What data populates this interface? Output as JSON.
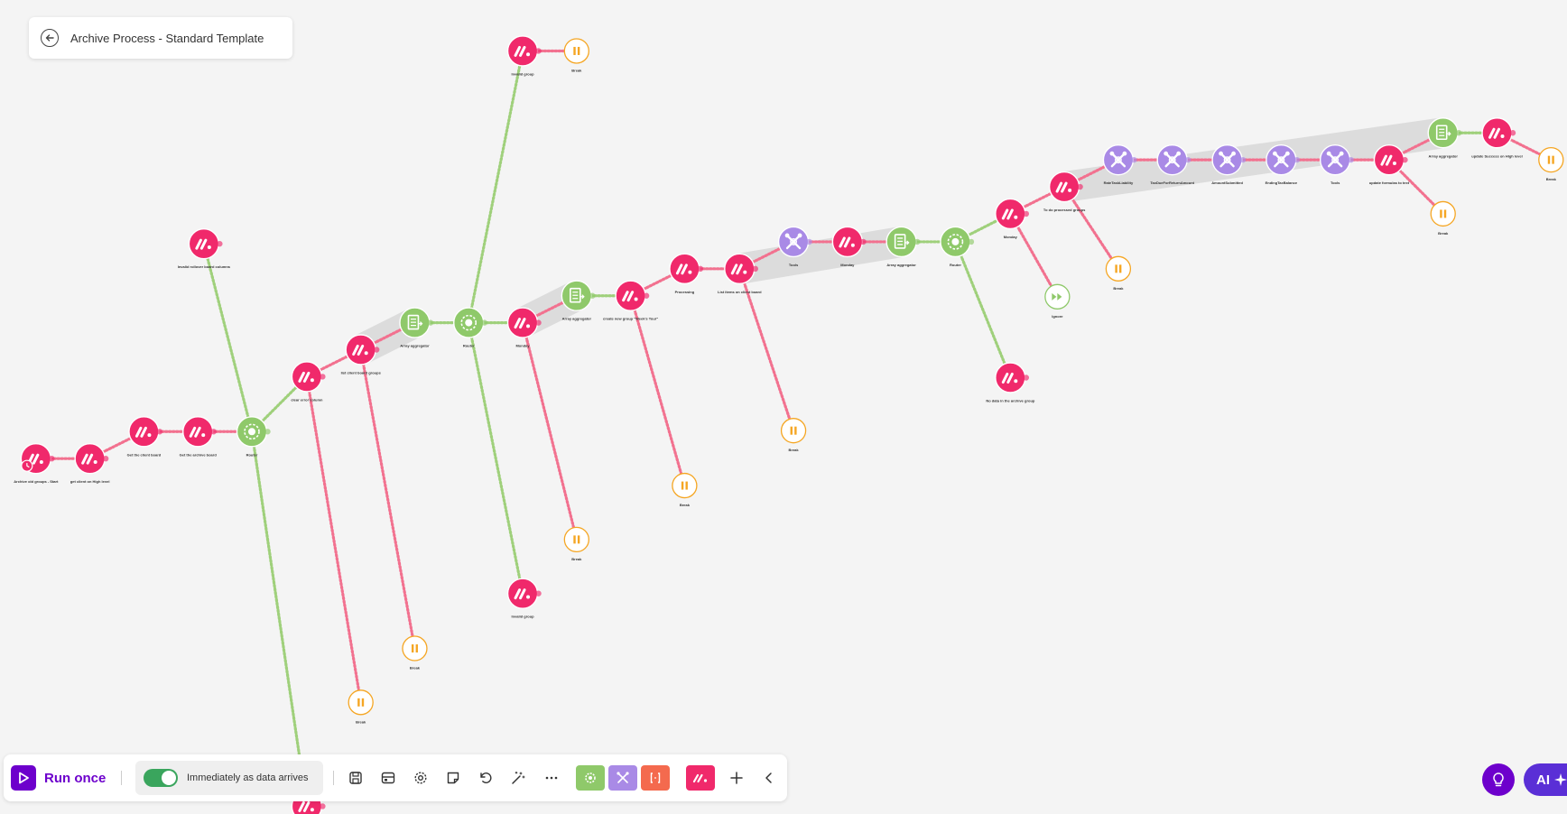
{
  "scenario": {
    "title": "Archive Process - Standard Template"
  },
  "toolbar": {
    "run_once_label": "Run once",
    "schedule_label": "Immediately as data arrives",
    "schedule_enabled": true
  },
  "bottom_right": {
    "ai_label": "AI"
  },
  "colors": {
    "app": "#f0296b",
    "router": "#8fc96a",
    "aggregator": "#8fc96a",
    "tools": "#a98ae6",
    "break": "#f5a623",
    "ignore": "#8fc96a",
    "brand": "#6d00cc"
  },
  "flow": {
    "nodes": [
      {
        "id": "n1",
        "kind": "app",
        "label": "Archive old groups - Start",
        "trigger": true
      },
      {
        "id": "n2",
        "kind": "app",
        "label": "get client on High level"
      },
      {
        "id": "n3",
        "kind": "app",
        "label": "Get the client board"
      },
      {
        "id": "n4",
        "kind": "app",
        "label": "Get the archive board"
      },
      {
        "id": "n5",
        "kind": "router",
        "label": "Router"
      },
      {
        "id": "n6",
        "kind": "app",
        "label": "Invalid rollover board columns"
      },
      {
        "id": "n7",
        "kind": "app",
        "label": "clear error column"
      },
      {
        "id": "n8",
        "kind": "app",
        "label": "list client board groups"
      },
      {
        "id": "n9",
        "kind": "aggregator",
        "label": "Array aggregator"
      },
      {
        "id": "n10",
        "kind": "router",
        "label": "Router"
      },
      {
        "id": "n11",
        "kind": "app",
        "label": "Invalid group"
      },
      {
        "id": "n12",
        "kind": "break",
        "label": "Break"
      },
      {
        "id": "n13",
        "kind": "app",
        "label": "Monday"
      },
      {
        "id": "n14",
        "kind": "aggregator",
        "label": "Array aggregator"
      },
      {
        "id": "n15",
        "kind": "app",
        "label": "create new group \"Week's Tour\""
      },
      {
        "id": "n16",
        "kind": "app",
        "label": "Processing"
      },
      {
        "id": "n17",
        "kind": "app",
        "label": "List items on client board"
      },
      {
        "id": "n18",
        "kind": "tools",
        "label": "Tools"
      },
      {
        "id": "n19",
        "kind": "app",
        "label": "Monday"
      },
      {
        "id": "n20",
        "kind": "aggregator",
        "label": "Array aggregator"
      },
      {
        "id": "n21",
        "kind": "router",
        "label": "Router"
      },
      {
        "id": "n22",
        "kind": "app",
        "label": "Monday"
      },
      {
        "id": "n23",
        "kind": "app",
        "label": "To do processed groups"
      },
      {
        "id": "n24",
        "kind": "tools",
        "label": "RateTaskLiability"
      },
      {
        "id": "n25",
        "kind": "tools",
        "label": "TaxDueForReturnAmount"
      },
      {
        "id": "n26",
        "kind": "tools",
        "label": "AmountSubmitted"
      },
      {
        "id": "n27",
        "kind": "tools",
        "label": "EndingTaxBalance"
      },
      {
        "id": "n28",
        "kind": "tools",
        "label": "Tools"
      },
      {
        "id": "n29",
        "kind": "app",
        "label": "update formulas to text"
      },
      {
        "id": "n30",
        "kind": "aggregator",
        "label": "Array aggregator"
      },
      {
        "id": "n31",
        "kind": "app",
        "label": "update Success on High level"
      },
      {
        "id": "n32",
        "kind": "break",
        "label": "Break"
      },
      {
        "id": "n33",
        "kind": "break",
        "label": "Break"
      },
      {
        "id": "n34",
        "kind": "break",
        "label": "Break"
      },
      {
        "id": "n35",
        "kind": "ignore",
        "label": "Ignore"
      },
      {
        "id": "n36",
        "kind": "app",
        "label": "No data in the archive group"
      },
      {
        "id": "n37",
        "kind": "break",
        "label": "Break"
      },
      {
        "id": "n38",
        "kind": "break",
        "label": "Break"
      },
      {
        "id": "n39",
        "kind": "break",
        "label": "Break"
      },
      {
        "id": "n40",
        "kind": "app",
        "label": "Invalid group"
      },
      {
        "id": "n41",
        "kind": "break",
        "label": "Break"
      },
      {
        "id": "n42",
        "kind": "break",
        "label": "Break"
      },
      {
        "id": "n43",
        "kind": "app",
        "label": ""
      }
    ]
  }
}
